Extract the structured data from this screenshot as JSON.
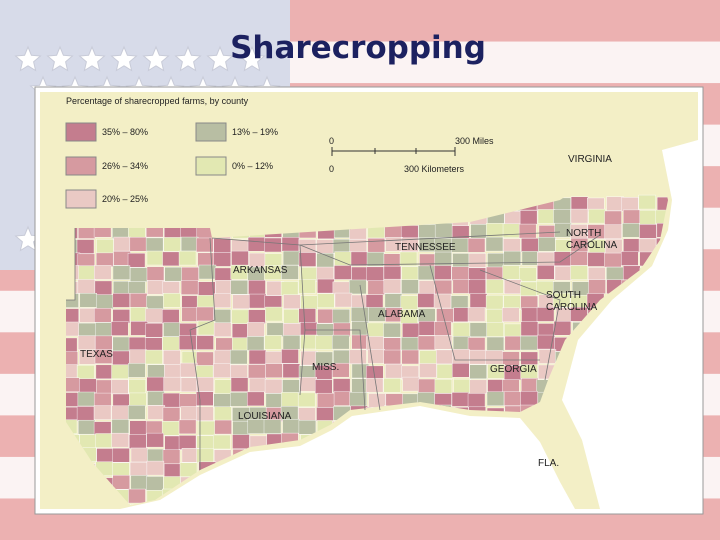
{
  "title": "Sharecropping",
  "map": {
    "legend_title": "Percentage of sharecropped farms, by county",
    "legend": [
      {
        "label": "35% – 80%",
        "color": "#c47d8e"
      },
      {
        "label": "26% – 34%",
        "color": "#d69aa0"
      },
      {
        "label": "20% – 25%",
        "color": "#eac9c4"
      },
      {
        "label": "13% – 19%",
        "color": "#b8bea3"
      },
      {
        "label": "0% – 12%",
        "color": "#e2e8b2"
      }
    ],
    "scale": {
      "miles_start": "0",
      "miles": "300 Miles",
      "km_start": "0",
      "km": "300 Kilometers"
    },
    "states": [
      {
        "lines": [
          "VIRGINIA"
        ]
      },
      {
        "lines": [
          "NORTH",
          "CAROLINA"
        ]
      },
      {
        "lines": [
          "TENNESSEE"
        ]
      },
      {
        "lines": [
          "ARKANSAS"
        ]
      },
      {
        "lines": [
          "SOUTH",
          "CAROLINA"
        ]
      },
      {
        "lines": [
          "ALABAMA"
        ]
      },
      {
        "lines": [
          "TEXAS"
        ]
      },
      {
        "lines": [
          "MISS."
        ]
      },
      {
        "lines": [
          "GEORGIA"
        ]
      },
      {
        "lines": [
          "LOUISIANA"
        ]
      },
      {
        "lines": [
          "FLA."
        ]
      }
    ]
  }
}
